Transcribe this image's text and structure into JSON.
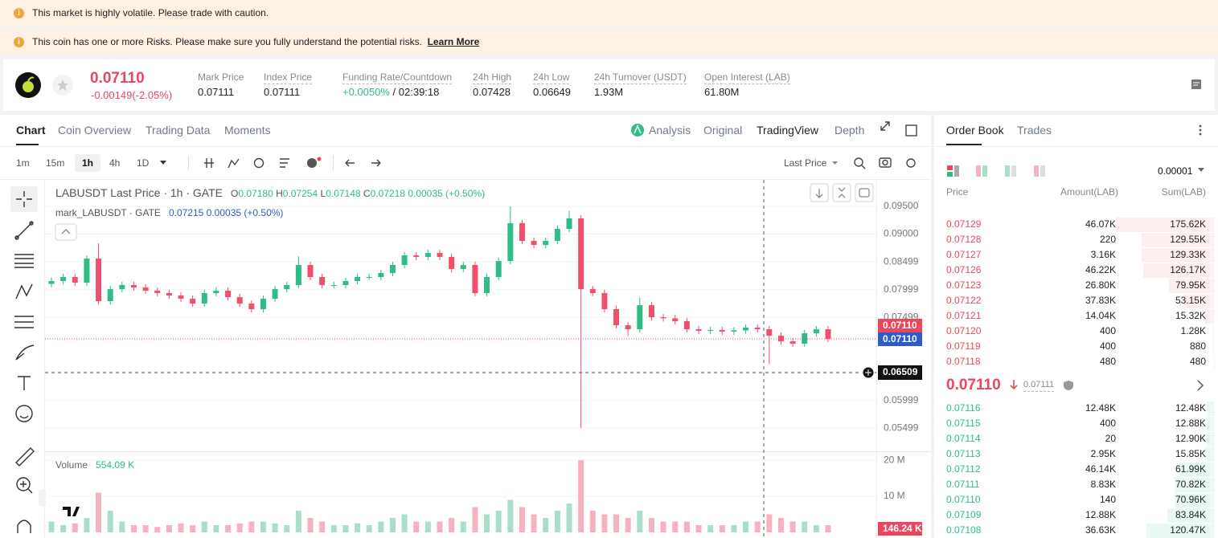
{
  "banners": [
    "This market is highly volatile. Please trade with caution.",
    "This coin has one or more Risks. Please make sure you fully understand the potential risks."
  ],
  "banner_link": "Learn More",
  "ticker": {
    "price": "0.07110",
    "change": "-0.00149(-2.05%)",
    "stats": [
      {
        "label": "Mark Price",
        "value": "0.07111"
      },
      {
        "label": "Index Price",
        "value": "0.07111"
      },
      {
        "label": "Funding Rate/Countdown",
        "value": "+0.0050%",
        "extra": "/ 02:39:18"
      },
      {
        "label": "24h High",
        "value": "0.07428"
      },
      {
        "label": "24h Low",
        "value": "0.06649"
      },
      {
        "label": "24h Turnover (USDT)",
        "value": "1.93M"
      },
      {
        "label": "Open Interest (LAB)",
        "value": "61.80M"
      }
    ]
  },
  "tabs": [
    "Chart",
    "Coin Overview",
    "Trading Data",
    "Moments"
  ],
  "views": [
    "Analysis",
    "Original",
    "TradingView",
    "Depth"
  ],
  "intervals": [
    "1m",
    "15m",
    "1h",
    "4h",
    "1D"
  ],
  "price_source": "Last Price",
  "chart_data": {
    "type": "candlestick",
    "legend": {
      "symbol": "LABUSDT Last Price · 1h · GATE",
      "ohlc": [
        {
          "label": "O",
          "value": "0.07180"
        },
        {
          "label": "H",
          "value": "0.07254"
        },
        {
          "label": "L",
          "value": "0.07148"
        },
        {
          "label": "C",
          "value": "0.07218"
        }
      ],
      "change": "0.00035 (+0.50%)"
    },
    "mark_legend": {
      "symbol": "mark_LABUSDT · GATE",
      "value": "0.07215",
      "change": "0.00035",
      "pct": "(+0.50%)"
    },
    "open": [
      0.081,
      0.08152,
      0.08225,
      0.08123,
      0.08558,
      0.0779,
      0.08007,
      0.0808,
      0.08036,
      0.07978,
      0.07935,
      0.07891,
      0.07833,
      0.07746,
      0.07935,
      0.07978,
      0.07862,
      0.07746,
      0.07645,
      0.07833,
      0.08007,
      0.0808,
      0.08442,
      0.08225,
      0.0808,
      0.0808,
      0.08152,
      0.08225,
      0.08225,
      0.08297,
      0.08442,
      0.08616,
      0.08587,
      0.08659,
      0.08587,
      0.0837,
      0.08442,
      0.07935,
      0.08225,
      0.08514,
      0.09196,
      0.08877,
      0.08804,
      0.08877,
      0.09094,
      0.09283,
      0.08007,
      0.07935,
      0.07645,
      0.07355,
      0.07283,
      0.07717,
      0.075,
      0.0748,
      0.07428,
      0.07283,
      0.07254,
      0.0727,
      0.0724,
      0.07262,
      0.07312,
      0.07283,
      0.07167,
      0.07065,
      0.07022,
      0.0721,
      0.07283
    ],
    "high": [
      0.08212,
      0.08285,
      0.08285,
      0.08618,
      0.08833,
      0.08067,
      0.0814,
      0.0814,
      0.08096,
      0.08038,
      0.07995,
      0.07951,
      0.07893,
      0.07995,
      0.08038,
      0.08038,
      0.07922,
      0.07806,
      0.07893,
      0.08067,
      0.0814,
      0.086,
      0.08502,
      0.08285,
      0.0814,
      0.08212,
      0.08285,
      0.08285,
      0.08357,
      0.08502,
      0.08676,
      0.08676,
      0.08719,
      0.08719,
      0.08647,
      0.08502,
      0.08502,
      0.08285,
      0.08574,
      0.095,
      0.09256,
      0.08937,
      0.08937,
      0.09154,
      0.0942,
      0.09343,
      0.08067,
      0.07995,
      0.07705,
      0.07415,
      0.0785,
      0.07777,
      0.0756,
      0.0754,
      0.07488,
      0.07343,
      0.0733,
      0.0733,
      0.07322,
      0.07372,
      0.07372,
      0.07343,
      0.07227,
      0.07125,
      0.0727,
      0.07343,
      0.07343
    ],
    "low": [
      0.0804,
      0.08092,
      0.08063,
      0.08063,
      0.0773,
      0.0773,
      0.07947,
      0.07976,
      0.07918,
      0.07875,
      0.07831,
      0.07773,
      0.07686,
      0.07686,
      0.07875,
      0.07802,
      0.07686,
      0.07585,
      0.07585,
      0.07773,
      0.07947,
      0.0802,
      0.08165,
      0.0802,
      0.0802,
      0.0802,
      0.08092,
      0.08165,
      0.08165,
      0.08237,
      0.08382,
      0.08527,
      0.08527,
      0.08527,
      0.0831,
      0.0831,
      0.07875,
      0.07875,
      0.08165,
      0.08454,
      0.08817,
      0.08744,
      0.08744,
      0.08817,
      0.09034,
      0.05499,
      0.07875,
      0.07585,
      0.07295,
      0.0716,
      0.07223,
      0.0744,
      0.0742,
      0.07368,
      0.07223,
      0.07194,
      0.07194,
      0.0718,
      0.0718,
      0.07202,
      0.07223,
      0.0665,
      0.07005,
      0.06962,
      0.06962,
      0.0715,
      0.07049
    ],
    "close": [
      0.08152,
      0.08225,
      0.08123,
      0.08558,
      0.0779,
      0.08007,
      0.0808,
      0.08036,
      0.07978,
      0.07935,
      0.07891,
      0.07833,
      0.07746,
      0.07935,
      0.07978,
      0.07862,
      0.07746,
      0.07645,
      0.07833,
      0.08007,
      0.0808,
      0.08442,
      0.08225,
      0.0808,
      0.0808,
      0.08152,
      0.08225,
      0.08225,
      0.08297,
      0.08442,
      0.08616,
      0.08587,
      0.08659,
      0.08587,
      0.0837,
      0.08442,
      0.07935,
      0.08225,
      0.08514,
      0.09196,
      0.08877,
      0.08804,
      0.08877,
      0.09094,
      0.09283,
      0.08007,
      0.07935,
      0.07645,
      0.07355,
      0.07283,
      0.07717,
      0.075,
      0.0748,
      0.07428,
      0.07283,
      0.07254,
      0.0727,
      0.0724,
      0.07262,
      0.07312,
      0.07283,
      0.07167,
      0.07065,
      0.07022,
      0.0721,
      0.07283,
      0.07109
    ],
    "ylim": [
      0.0511,
      0.0992
    ],
    "yticks": [
      {
        "value": 0.095,
        "label": "0.09500"
      },
      {
        "value": 0.09,
        "label": "0.09000"
      },
      0.08499,
      0.07999,
      0.07499,
      0.05999,
      0.05499
    ],
    "colors": {
      "up": "#2ebd85",
      "down": "#f0506e",
      "up_volume": "#a9dfc8",
      "down_volume": "#f7b2bf"
    },
    "last_price_label": "0.07110",
    "mark_price_label": "0.07110",
    "crosshair_label": "0.06509",
    "volume_title": "Volume",
    "volume_value": "554.09 K",
    "volume": [
      3,
      2,
      2.5,
      4,
      11,
      6,
      3,
      2,
      2,
      1.5,
      2,
      2.5,
      2,
      3,
      2,
      2,
      2.5,
      3,
      3,
      2.5,
      2,
      6,
      4,
      3,
      2,
      2,
      2.5,
      2,
      3,
      4,
      5,
      3,
      3,
      3,
      4,
      3,
      7,
      5,
      6,
      9,
      7,
      5,
      4,
      6,
      8,
      20,
      6,
      5,
      5,
      4,
      6,
      4,
      3,
      3,
      3,
      2,
      2,
      2,
      2,
      3,
      3,
      5,
      4,
      3,
      3,
      2,
      2
    ],
    "vylim": [
      0,
      21.8
    ],
    "vyticks": [
      {
        "value": 20,
        "label": "20 M"
      },
      {
        "value": 10,
        "label": "10 M"
      }
    ],
    "volume_current_label": "146.24 K"
  },
  "order_book": {
    "tabs": [
      "Order Book",
      "Trades"
    ],
    "precision": "0.00001",
    "headers": [
      "Price",
      "Amount(LAB)",
      "Sum(LAB)"
    ],
    "asks": [
      [
        "0.07129",
        "46.07K",
        {
          "value": 175620,
          "label": "175.62K"
        }
      ],
      [
        "0.07128",
        "220",
        {
          "value": 129550,
          "label": "129.55K"
        }
      ],
      [
        "0.07127",
        "3.16K",
        {
          "value": 129330,
          "label": "129.33K"
        }
      ],
      [
        "0.07126",
        "46.22K",
        {
          "value": 126170,
          "label": "126.17K"
        }
      ],
      [
        "0.07123",
        "26.80K",
        {
          "value": 79950,
          "label": "79.95K"
        }
      ],
      [
        "0.07122",
        "37.83K",
        {
          "value": 53150,
          "label": "53.15K"
        }
      ],
      [
        "0.07121",
        "14.04K",
        {
          "value": 15320,
          "label": "15.32K"
        }
      ],
      [
        "0.07120",
        "400",
        {
          "value": 1280,
          "label": "1.28K"
        }
      ],
      [
        "0.07119",
        "400",
        880
      ],
      [
        "0.07118",
        "480",
        480
      ]
    ],
    "mid_price": "0.07110",
    "mark_price": "0.07111",
    "bids": [
      [
        "0.07116",
        "12.48K",
        {
          "value": 12480,
          "label": "12.48K"
        }
      ],
      [
        "0.07115",
        "400",
        {
          "value": 12880,
          "label": "12.88K"
        }
      ],
      [
        "0.07114",
        "20",
        {
          "value": 12900,
          "label": "12.90K"
        }
      ],
      [
        "0.07113",
        "2.95K",
        {
          "value": 15850,
          "label": "15.85K"
        }
      ],
      [
        "0.07112",
        "46.14K",
        {
          "value": 61990,
          "label": "61.99K"
        }
      ],
      [
        "0.07111",
        "8.83K",
        {
          "value": 70820,
          "label": "70.82K"
        }
      ],
      [
        "0.07110",
        "140",
        {
          "value": 70960,
          "label": "70.96K"
        }
      ],
      [
        "0.07109",
        "12.88K",
        {
          "value": 83840,
          "label": "83.84K"
        }
      ],
      [
        "0.07108",
        "36.63K",
        {
          "value": 120470,
          "label": "120.47K"
        }
      ]
    ]
  }
}
